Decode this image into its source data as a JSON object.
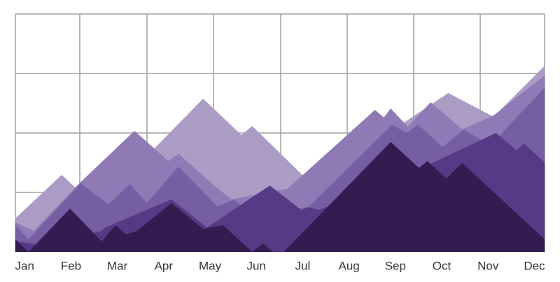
{
  "chart_data": {
    "type": "area",
    "xlim": [
      -0.2,
      11.22
    ],
    "ylim": [
      0,
      100
    ],
    "xticks": [
      {
        "value": 0,
        "label": "Jan"
      },
      {
        "value": 1,
        "label": "Feb"
      },
      {
        "value": 2,
        "label": "Mar"
      },
      {
        "value": 3,
        "label": "Apr"
      },
      {
        "value": 4,
        "label": "May"
      },
      {
        "value": 5,
        "label": "Jun"
      },
      {
        "value": 6,
        "label": "Jul"
      },
      {
        "value": 7,
        "label": "Aug"
      },
      {
        "value": 8,
        "label": "Sep"
      },
      {
        "value": 9,
        "label": "Oct"
      },
      {
        "value": 10,
        "label": "Nov"
      },
      {
        "value": 11,
        "label": "Dec"
      }
    ],
    "series": [
      {
        "color": "#ab9cc6",
        "x": [
          -0.2,
          0.8,
          1.09,
          2.8,
          3.85,
          4.68,
          4.91,
          6.07,
          7.63,
          9.14,
          10.12,
          11.22
        ],
        "values": [
          14.1,
          32.4,
          27.1,
          43.5,
          64.4,
          49.1,
          52.9,
          30.9,
          47.1,
          66.8,
          56.8,
          78.2
        ]
      },
      {
        "color": "#8f7ab5",
        "x": [
          -0.2,
          0.2,
          1.13,
          2.37,
          3.1,
          3.32,
          4.0,
          4.46,
          5.67,
          7.56,
          7.75,
          7.9,
          8.27,
          8.76,
          9.44,
          10.12,
          11.22
        ],
        "values": [
          12.4,
          8.8,
          27.9,
          50.9,
          38.2,
          41.2,
          29.4,
          22.1,
          26.5,
          59.7,
          56.5,
          60.3,
          52.6,
          62.9,
          51.5,
          57.4,
          74.1
        ]
      },
      {
        "color": "#765ea3",
        "x": [
          -0.2,
          0.08,
          1.21,
          1.81,
          2.27,
          2.64,
          3.32,
          4.16,
          4.53,
          4.76,
          5.52,
          6.12,
          7.93,
          8.24,
          8.49,
          9.02,
          9.47,
          10.05,
          11.22
        ],
        "values": [
          11.2,
          5.3,
          28.8,
          20,
          28.5,
          20.6,
          35.9,
          19.1,
          22.1,
          17.6,
          17.6,
          18.8,
          53.5,
          50,
          53.5,
          44.1,
          51.5,
          44.7,
          69.1
        ]
      },
      {
        "color": "#563a86",
        "x": [
          -0.2,
          0.38,
          1.66,
          1.74,
          3.17,
          3.93,
          4.16,
          5.29,
          5.97,
          6.12,
          6.35,
          7.93,
          10.17,
          10.62,
          10.77,
          11.22
        ],
        "values": [
          4.4,
          2.9,
          8.8,
          10.3,
          22.1,
          10.3,
          13.2,
          27.9,
          17.6,
          18.8,
          17.6,
          29.4,
          50,
          42.6,
          45.6,
          37.6
        ]
      },
      {
        "color": "#331c50",
        "x": [
          -0.2,
          0.08,
          0.98,
          1.66,
          1.96,
          2.19,
          2.42,
          3.17,
          3.85,
          4.28,
          4.91,
          5.14,
          5.36,
          5.59,
          7.9,
          8.51,
          8.69,
          9.1,
          9.44,
          11.22
        ],
        "values": [
          5.3,
          0,
          18.2,
          4.4,
          11.2,
          7.4,
          8.8,
          20.6,
          9.7,
          11.2,
          0,
          3.5,
          0,
          0,
          46.2,
          35.3,
          38.2,
          30.9,
          37.4,
          5.3
        ]
      }
    ]
  }
}
